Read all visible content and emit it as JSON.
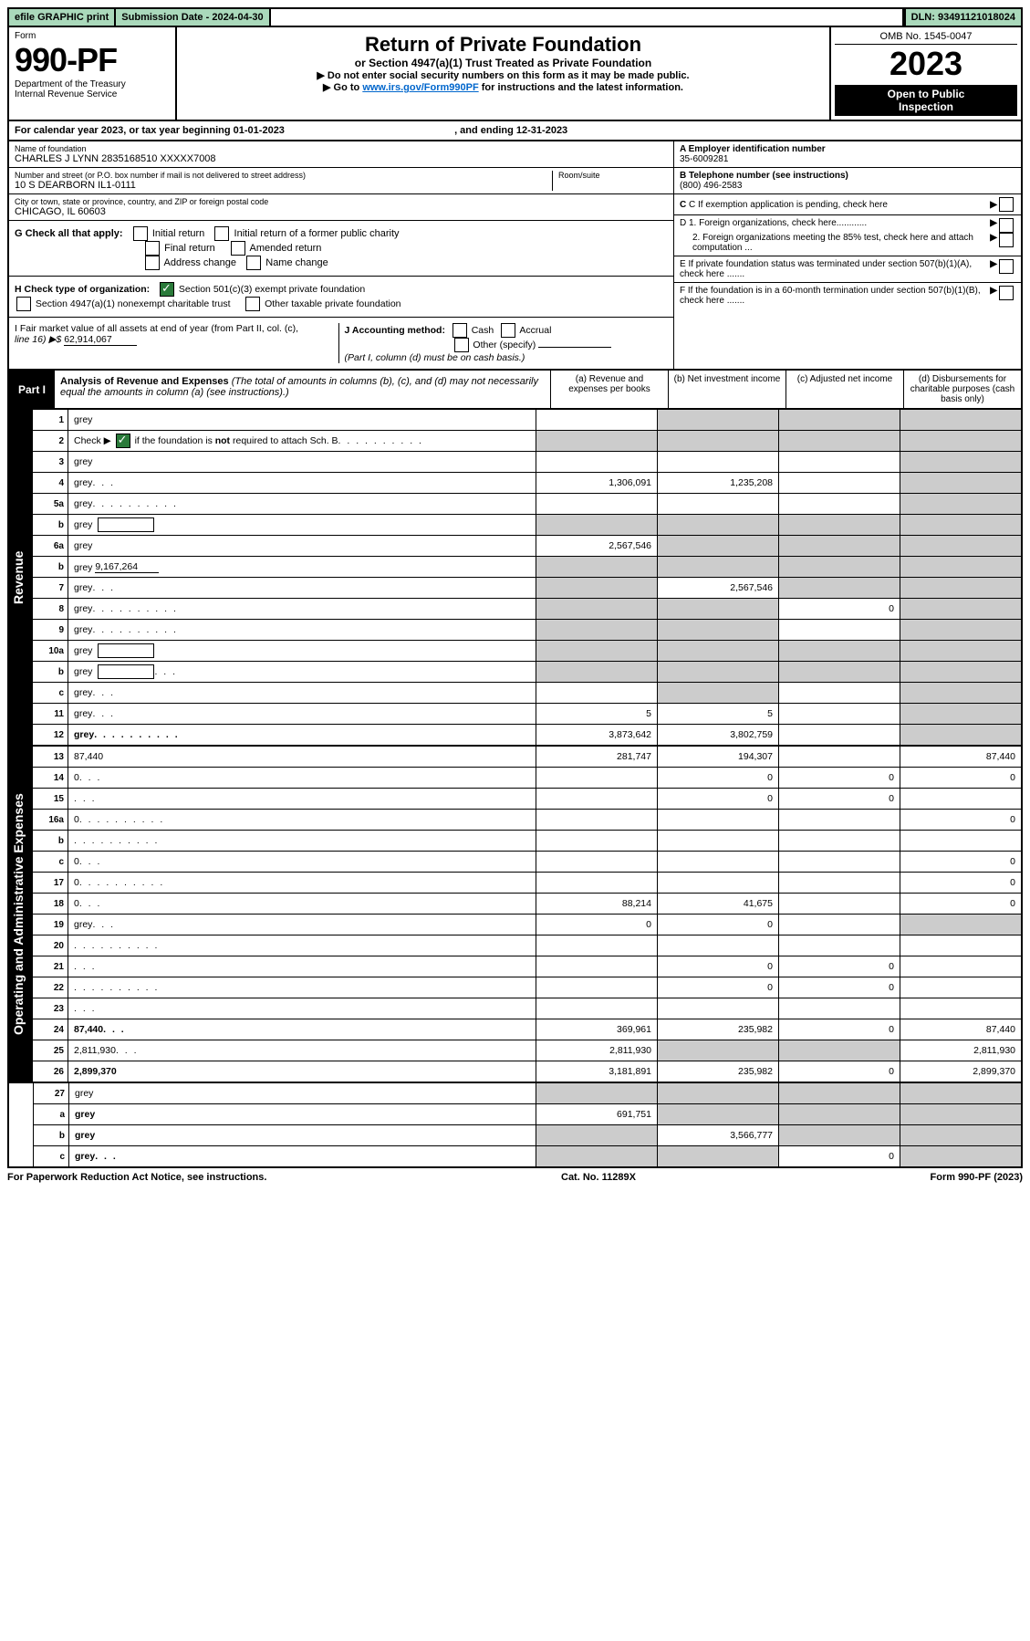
{
  "topbar": {
    "efile": "efile GRAPHIC print",
    "subdate_label": "Submission Date - ",
    "subdate": "2024-04-30",
    "dln_label": "DLN: ",
    "dln": "93491121018024"
  },
  "header": {
    "form_word": "Form",
    "form_num": "990-PF",
    "dept1": "Department of the Treasury",
    "dept2": "Internal Revenue Service",
    "title": "Return of Private Foundation",
    "subtitle": "or Section 4947(a)(1) Trust Treated as Private Foundation",
    "instr1": "▶ Do not enter social security numbers on this form as it may be made public.",
    "instr2a": "▶ Go to ",
    "instr2_link": "www.irs.gov/Form990PF",
    "instr2b": " for instructions and the latest information.",
    "omb": "OMB No. 1545-0047",
    "year": "2023",
    "open1": "Open to Public",
    "open2": "Inspection"
  },
  "calyear": {
    "prefix": "For calendar year 2023, or tax year beginning ",
    "begin": "01-01-2023",
    "mid": " , and ending ",
    "end": "12-31-2023"
  },
  "entity": {
    "name_label": "Name of foundation",
    "name": "CHARLES J LYNN 2835168510 XXXXX7008",
    "addr_label": "Number and street (or P.O. box number if mail is not delivered to street address)",
    "addr": "10 S DEARBORN IL1-0111",
    "room_label": "Room/suite",
    "city_label": "City or town, state or province, country, and ZIP or foreign postal code",
    "city": "CHICAGO, IL  60603",
    "A_label": "A Employer identification number",
    "A_val": "35-6009281",
    "B_label": "B Telephone number (see instructions)",
    "B_val": "(800) 496-2583",
    "C_label": "C If exemption application is pending, check here",
    "D1": "D 1. Foreign organizations, check here............",
    "D2": "2. Foreign organizations meeting the 85% test, check here and attach computation ...",
    "E": "E  If private foundation status was terminated under section 507(b)(1)(A), check here .......",
    "F": "F  If the foundation is in a 60-month termination under section 507(b)(1)(B), check here .......",
    "G_label": "G Check all that apply:",
    "G_opts": [
      "Initial return",
      "Initial return of a former public charity",
      "Final return",
      "Amended return",
      "Address change",
      "Name change"
    ],
    "H_label": "H Check type of organization:",
    "H_opt1": "Section 501(c)(3) exempt private foundation",
    "H_opt2": "Section 4947(a)(1) nonexempt charitable trust",
    "H_opt3": "Other taxable private foundation",
    "I_label1": "I Fair market value of all assets at end of year (from Part II, col. (c),",
    "I_label2": "line 16) ▶$ ",
    "I_val": "62,914,067",
    "J_label": "J Accounting method:",
    "J_opts": [
      "Cash",
      "Accrual"
    ],
    "J_other": "Other (specify)",
    "J_note": "(Part I, column (d) must be on cash basis.)"
  },
  "part1": {
    "label": "Part I",
    "title": "Analysis of Revenue and Expenses",
    "note": " (The total of amounts in columns (b), (c), and (d) may not necessarily equal the amounts in column (a) (see instructions).)",
    "col_a": "(a)   Revenue and expenses per books",
    "col_b": "(b)   Net investment income",
    "col_c": "(c)   Adjusted net income",
    "col_d": "(d)   Disbursements for charitable purposes (cash basis only)"
  },
  "sides": {
    "revenue": "Revenue",
    "opadmin": "Operating and Administrative Expenses"
  },
  "rows": [
    {
      "n": "1",
      "d": "grey",
      "a": "",
      "b": "grey",
      "c": "grey"
    },
    {
      "n": "2",
      "d": "grey",
      "dots": true,
      "a": "grey",
      "b": "grey",
      "c": "grey",
      "hascheck": true
    },
    {
      "n": "3",
      "d": "grey",
      "a": "",
      "b": "",
      "c": ""
    },
    {
      "n": "4",
      "d": "grey",
      "dots": "s",
      "a": "1,306,091",
      "b": "1,235,208",
      "c": ""
    },
    {
      "n": "5a",
      "d": "grey",
      "dots": true,
      "a": "",
      "b": "",
      "c": ""
    },
    {
      "n": "b",
      "d": "grey",
      "box": true,
      "a": "grey",
      "b": "grey",
      "c": "grey"
    },
    {
      "n": "6a",
      "d": "grey",
      "a": "2,567,546",
      "b": "grey",
      "c": "grey"
    },
    {
      "n": "b",
      "d": "grey",
      "under": "9,167,264",
      "a": "grey",
      "b": "grey",
      "c": "grey"
    },
    {
      "n": "7",
      "d": "grey",
      "dots": "s",
      "a": "grey",
      "b": "2,567,546",
      "c": "grey"
    },
    {
      "n": "8",
      "d": "grey",
      "dots": true,
      "a": "grey",
      "b": "grey",
      "c": "0"
    },
    {
      "n": "9",
      "d": "grey",
      "dots": true,
      "a": "grey",
      "b": "grey",
      "c": ""
    },
    {
      "n": "10a",
      "d": "grey",
      "box": true,
      "a": "grey",
      "b": "grey",
      "c": "grey"
    },
    {
      "n": "b",
      "d": "grey",
      "dots": "s",
      "box": true,
      "a": "grey",
      "b": "grey",
      "c": "grey"
    },
    {
      "n": "c",
      "d": "grey",
      "dots": "s",
      "a": "",
      "b": "grey",
      "c": ""
    },
    {
      "n": "11",
      "d": "grey",
      "dots": "s",
      "a": "5",
      "b": "5",
      "c": ""
    },
    {
      "n": "12",
      "d": "grey",
      "dots": true,
      "bold": true,
      "a": "3,873,642",
      "b": "3,802,759",
      "c": ""
    }
  ],
  "rows2": [
    {
      "n": "13",
      "d": "87,440",
      "a": "281,747",
      "b": "194,307",
      "c": ""
    },
    {
      "n": "14",
      "d": "0",
      "dots": "s",
      "a": "",
      "b": "0",
      "c": "0"
    },
    {
      "n": "15",
      "d": "",
      "dots": "s",
      "a": "",
      "b": "0",
      "c": "0"
    },
    {
      "n": "16a",
      "d": "0",
      "dots": true,
      "a": "",
      "b": "",
      "c": ""
    },
    {
      "n": "b",
      "d": "",
      "dots": true,
      "a": "",
      "b": "",
      "c": ""
    },
    {
      "n": "c",
      "d": "0",
      "dots": "s",
      "a": "",
      "b": "",
      "c": ""
    },
    {
      "n": "17",
      "d": "0",
      "dots": true,
      "a": "",
      "b": "",
      "c": ""
    },
    {
      "n": "18",
      "d": "0",
      "dots": "s",
      "a": "88,214",
      "b": "41,675",
      "c": ""
    },
    {
      "n": "19",
      "d": "grey",
      "dots": "s",
      "a": "0",
      "b": "0",
      "c": ""
    },
    {
      "n": "20",
      "d": "",
      "dots": true,
      "a": "",
      "b": "",
      "c": ""
    },
    {
      "n": "21",
      "d": "",
      "dots": "s",
      "a": "",
      "b": "0",
      "c": "0"
    },
    {
      "n": "22",
      "d": "",
      "dots": true,
      "a": "",
      "b": "0",
      "c": "0"
    },
    {
      "n": "23",
      "d": "",
      "dots": "s",
      "a": "",
      "b": "",
      "c": ""
    },
    {
      "n": "24",
      "d": "87,440",
      "dots": "s",
      "bold": true,
      "a": "369,961",
      "b": "235,982",
      "c": "0"
    },
    {
      "n": "25",
      "d": "2,811,930",
      "dots": "s",
      "a": "2,811,930",
      "b": "grey",
      "c": "grey"
    },
    {
      "n": "26",
      "d": "2,899,370",
      "bold": true,
      "a": "3,181,891",
      "b": "235,982",
      "c": "0"
    }
  ],
  "rows3": [
    {
      "n": "27",
      "d": "grey",
      "a": "grey",
      "b": "grey",
      "c": "grey"
    },
    {
      "n": "a",
      "d": "grey",
      "bold": true,
      "a": "691,751",
      "b": "grey",
      "c": "grey"
    },
    {
      "n": "b",
      "d": "grey",
      "bold": true,
      "a": "grey",
      "b": "3,566,777",
      "c": "grey"
    },
    {
      "n": "c",
      "d": "grey",
      "bold": true,
      "dots": "s",
      "a": "grey",
      "b": "grey",
      "c": "0"
    }
  ],
  "footer": {
    "left": "For Paperwork Reduction Act Notice, see instructions.",
    "mid": "Cat. No. 11289X",
    "right": "Form 990-PF (2023)"
  },
  "colors": {
    "greencell": "#aad9bb",
    "greybg": "#cccccc",
    "link": "#0066cc"
  }
}
